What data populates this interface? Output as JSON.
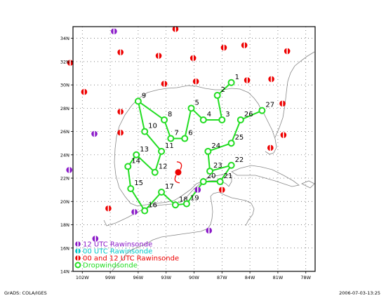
{
  "colors": {
    "r12": "#8a19c8",
    "r00": "#00c8c8",
    "rboth": "#ee0000",
    "drop": "#22dd22",
    "coast": "#888888",
    "hurricane": "#ee0000"
  },
  "map": {
    "lon_ticks": [
      "102W",
      "99W",
      "96W",
      "93W",
      "90W",
      "87W",
      "84W",
      "81W",
      "78W"
    ],
    "lat_ticks": [
      "14N",
      "16N",
      "18N",
      "20N",
      "22N",
      "24N",
      "26N",
      "28N",
      "30N",
      "32N",
      "34N"
    ]
  },
  "legend": [
    {
      "label": "12 UTC Rawinsonde",
      "kind": "r12"
    },
    {
      "label": "00 UTC Rawinsonde",
      "kind": "r00"
    },
    {
      "label": "00 and 12 UTC Rawinsonde",
      "kind": "rboth"
    },
    {
      "label": "Dropwindsonde",
      "kind": "drop"
    }
  ],
  "footer": {
    "left": "GrADS: COLA/IGES",
    "right": "2006-07-03-13:25"
  },
  "track": [
    {
      "n": "1",
      "lon": -86.0,
      "lat": 30.2
    },
    {
      "n": "2",
      "lon": -87.5,
      "lat": 29.1
    },
    {
      "n": "3",
      "lon": -87.0,
      "lat": 27.0
    },
    {
      "n": "4",
      "lon": -89.0,
      "lat": 27.0
    },
    {
      "n": "5",
      "lon": -90.3,
      "lat": 28.0
    },
    {
      "n": "6",
      "lon": -91.0,
      "lat": 25.4
    },
    {
      "n": "7",
      "lon": -92.5,
      "lat": 25.4
    },
    {
      "n": "8",
      "lon": -93.2,
      "lat": 27.0
    },
    {
      "n": "9",
      "lon": -96.0,
      "lat": 28.6
    },
    {
      "n": "10",
      "lon": -95.3,
      "lat": 26.0
    },
    {
      "n": "11",
      "lon": -93.5,
      "lat": 24.3
    },
    {
      "n": "12",
      "lon": -94.2,
      "lat": 22.5
    },
    {
      "n": "13",
      "lon": -96.2,
      "lat": 24.0
    },
    {
      "n": "14",
      "lon": -97.1,
      "lat": 23.0
    },
    {
      "n": "15",
      "lon": -96.8,
      "lat": 21.1
    },
    {
      "n": "16",
      "lon": -95.3,
      "lat": 19.2
    },
    {
      "n": "17",
      "lon": -93.5,
      "lat": 20.8
    },
    {
      "n": "18",
      "lon": -92.0,
      "lat": 19.7
    },
    {
      "n": "19",
      "lon": -90.8,
      "lat": 19.8
    },
    {
      "n": "20",
      "lon": -89.0,
      "lat": 21.7
    },
    {
      "n": "21",
      "lon": -87.2,
      "lat": 21.7
    },
    {
      "n": "22",
      "lon": -86.0,
      "lat": 23.1
    },
    {
      "n": "23",
      "lon": -88.3,
      "lat": 22.6
    },
    {
      "n": "24",
      "lon": -88.5,
      "lat": 24.3
    },
    {
      "n": "25",
      "lon": -86.0,
      "lat": 25.0
    },
    {
      "n": "26",
      "lon": -85.0,
      "lat": 27.0
    },
    {
      "n": "27",
      "lon": -82.7,
      "lat": 27.8
    }
  ],
  "stations": [
    {
      "kind": "r12",
      "lon": -98.6,
      "lat": 34.6
    },
    {
      "kind": "rboth",
      "lon": -92.0,
      "lat": 34.8
    },
    {
      "kind": "rboth",
      "lon": -97.9,
      "lat": 32.8
    },
    {
      "kind": "rboth",
      "lon": -93.8,
      "lat": 32.5
    },
    {
      "kind": "rboth",
      "lon": -90.1,
      "lat": 32.3
    },
    {
      "kind": "rboth",
      "lon": -86.8,
      "lat": 33.2
    },
    {
      "kind": "rboth",
      "lon": -84.6,
      "lat": 33.4
    },
    {
      "kind": "rboth",
      "lon": -80.0,
      "lat": 32.9
    },
    {
      "kind": "rboth",
      "lon": -103.3,
      "lat": 31.9
    },
    {
      "kind": "rboth",
      "lon": -101.8,
      "lat": 29.4
    },
    {
      "kind": "rboth",
      "lon": -93.2,
      "lat": 30.1
    },
    {
      "kind": "rboth",
      "lon": -89.8,
      "lat": 30.3
    },
    {
      "kind": "rboth",
      "lon": -84.3,
      "lat": 30.4
    },
    {
      "kind": "rboth",
      "lon": -81.7,
      "lat": 30.5
    },
    {
      "kind": "rboth",
      "lon": -97.9,
      "lat": 27.7
    },
    {
      "kind": "rboth",
      "lon": -80.5,
      "lat": 28.4
    },
    {
      "kind": "r12",
      "lon": -100.7,
      "lat": 25.8
    },
    {
      "kind": "rboth",
      "lon": -97.9,
      "lat": 25.9
    },
    {
      "kind": "rboth",
      "lon": -80.4,
      "lat": 25.7
    },
    {
      "kind": "rboth",
      "lon": -81.8,
      "lat": 24.6
    },
    {
      "kind": "r12",
      "lon": -103.4,
      "lat": 22.7
    },
    {
      "kind": "r12",
      "lon": -89.6,
      "lat": 21.0
    },
    {
      "kind": "rboth",
      "lon": -87.0,
      "lat": 21.0
    },
    {
      "kind": "rboth",
      "lon": -99.2,
      "lat": 19.4
    },
    {
      "kind": "r12",
      "lon": -96.4,
      "lat": 19.1
    },
    {
      "kind": "r12",
      "lon": -88.4,
      "lat": 17.5
    },
    {
      "kind": "r12",
      "lon": -100.6,
      "lat": 16.8
    }
  ],
  "hurricane": {
    "lon": -91.7,
    "lat": 22.5
  }
}
